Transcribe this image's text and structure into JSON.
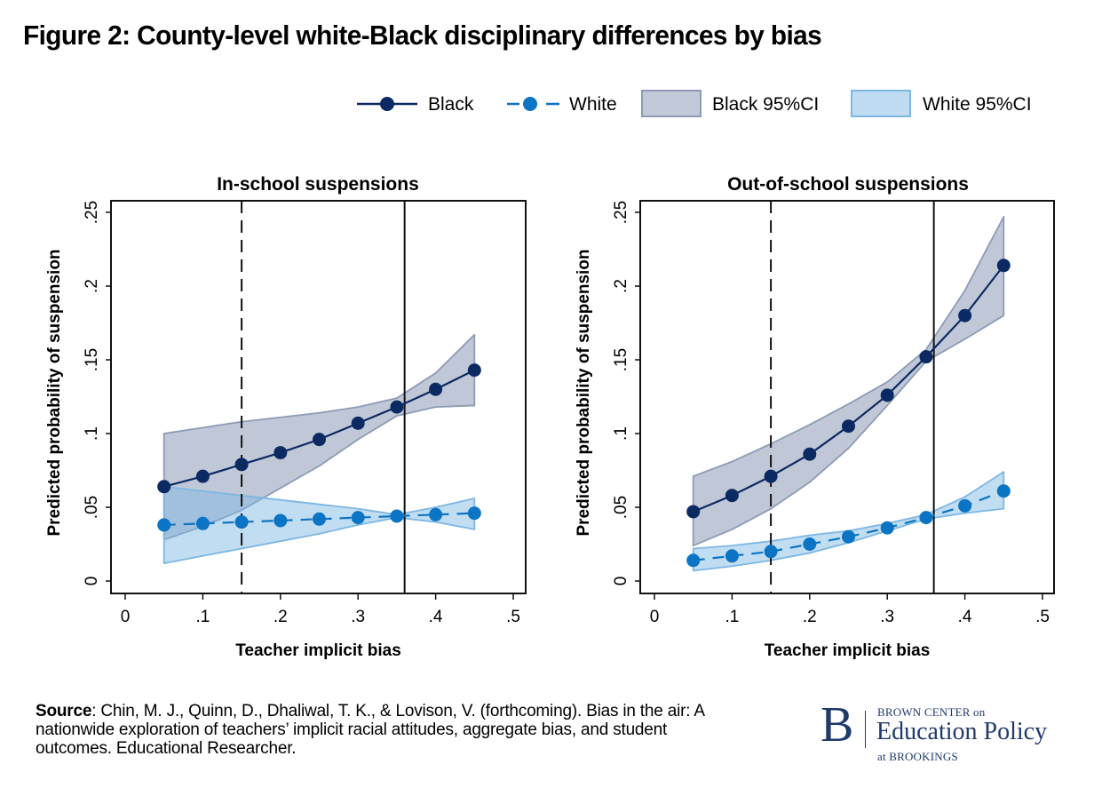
{
  "figure": {
    "title": "Figure 2: County-level white-Black disciplinary differences by bias",
    "source_label": "Source",
    "source_text": ": Chin, M. J., Quinn, D., Dhaliwal, T. K., & Lovison, V. (forthcoming). Bias in the air: A nationwide exploration of teachers’ implicit racial attitudes, aggregate bias, and student outcomes. Educational Researcher.",
    "logo": {
      "mark": "B",
      "line1": "BROWN CENTER on",
      "line2": "Education Policy",
      "line3": "at BROOKINGS"
    }
  },
  "legend": {
    "position": "top-right",
    "items": [
      {
        "label": "Black",
        "kind": "line-marker",
        "style": "solid"
      },
      {
        "label": "White",
        "kind": "line-marker",
        "style": "dashed"
      },
      {
        "label": "Black 95%CI",
        "kind": "area"
      },
      {
        "label": "White 95%CI",
        "kind": "area"
      }
    ]
  },
  "colors": {
    "black_series": "#0b2a63",
    "white_series": "#0b74c4",
    "black_ci_fill": "#c2c9d8",
    "black_ci_stroke": "#8d9bb6",
    "white_ci_fill": "#bfdcf2",
    "white_ci_stroke": "#7db7e3",
    "overlap_fill": "#96b7d6"
  },
  "chart_data": [
    {
      "type": "line",
      "title": "In-school suspensions",
      "xlabel": "Teacher implicit bias",
      "ylabel": "Predicted probability of suspension",
      "xlim": [
        0,
        0.5
      ],
      "ylim": [
        0,
        0.25
      ],
      "xticks": [
        "0",
        ".1",
        ".2",
        ".3",
        ".4",
        ".5"
      ],
      "xtick_values": [
        0,
        0.1,
        0.2,
        0.3,
        0.4,
        0.5
      ],
      "yticks": [
        "0",
        ".05",
        ".1",
        ".15",
        ".2",
        ".25"
      ],
      "ytick_values": [
        0,
        0.05,
        0.1,
        0.15,
        0.2,
        0.25
      ],
      "grid": false,
      "reference_lines": [
        {
          "x": 0.15,
          "style": "dashed"
        },
        {
          "x": 0.36,
          "style": "solid"
        }
      ],
      "x": [
        0.05,
        0.1,
        0.15,
        0.2,
        0.25,
        0.3,
        0.35,
        0.4,
        0.45
      ],
      "series": [
        {
          "name": "Black",
          "values": [
            0.064,
            0.071,
            0.079,
            0.087,
            0.096,
            0.107,
            0.118,
            0.13,
            0.143
          ],
          "ci_lower": [
            0.028,
            0.037,
            0.048,
            0.063,
            0.078,
            0.096,
            0.112,
            0.118,
            0.119
          ],
          "ci_upper": [
            0.1,
            0.104,
            0.108,
            0.111,
            0.114,
            0.118,
            0.124,
            0.141,
            0.167
          ]
        },
        {
          "name": "White",
          "values": [
            0.038,
            0.039,
            0.04,
            0.041,
            0.042,
            0.043,
            0.044,
            0.045,
            0.046
          ],
          "ci_lower": [
            0.012,
            0.017,
            0.022,
            0.027,
            0.032,
            0.038,
            0.043,
            0.04,
            0.035
          ],
          "ci_upper": [
            0.064,
            0.061,
            0.058,
            0.055,
            0.052,
            0.049,
            0.045,
            0.05,
            0.056
          ]
        }
      ]
    },
    {
      "type": "line",
      "title": "Out-of-school suspensions",
      "xlabel": "Teacher implicit bias",
      "ylabel": "Predicted probability of suspension",
      "xlim": [
        0,
        0.5
      ],
      "ylim": [
        0,
        0.25
      ],
      "xticks": [
        "0",
        ".1",
        ".2",
        ".3",
        ".4",
        ".5"
      ],
      "xtick_values": [
        0,
        0.1,
        0.2,
        0.3,
        0.4,
        0.5
      ],
      "yticks": [
        "0",
        ".05",
        ".1",
        ".15",
        ".2",
        ".25"
      ],
      "ytick_values": [
        0,
        0.05,
        0.1,
        0.15,
        0.2,
        0.25
      ],
      "grid": false,
      "reference_lines": [
        {
          "x": 0.15,
          "style": "dashed"
        },
        {
          "x": 0.36,
          "style": "solid"
        }
      ],
      "x": [
        0.05,
        0.1,
        0.15,
        0.2,
        0.25,
        0.3,
        0.35,
        0.4,
        0.45
      ],
      "series": [
        {
          "name": "Black",
          "values": [
            0.047,
            0.058,
            0.071,
            0.086,
            0.105,
            0.126,
            0.152,
            0.18,
            0.214
          ],
          "ci_lower": [
            0.024,
            0.035,
            0.049,
            0.067,
            0.09,
            0.119,
            0.149,
            0.164,
            0.18
          ],
          "ci_upper": [
            0.071,
            0.081,
            0.093,
            0.106,
            0.12,
            0.135,
            0.157,
            0.197,
            0.247
          ]
        },
        {
          "name": "White",
          "values": [
            0.014,
            0.017,
            0.02,
            0.025,
            0.03,
            0.036,
            0.043,
            0.051,
            0.061
          ],
          "ci_lower": [
            0.007,
            0.01,
            0.014,
            0.019,
            0.026,
            0.034,
            0.042,
            0.046,
            0.049
          ],
          "ci_upper": [
            0.022,
            0.024,
            0.027,
            0.031,
            0.034,
            0.039,
            0.045,
            0.057,
            0.074
          ]
        }
      ]
    }
  ]
}
